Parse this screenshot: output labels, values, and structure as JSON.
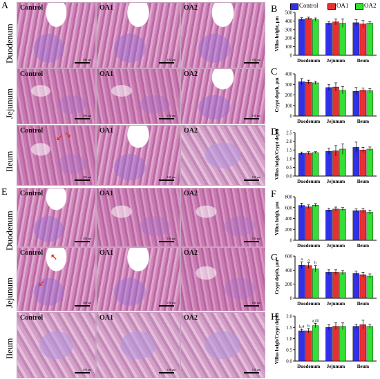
{
  "panels": {
    "A": "A",
    "B": "B",
    "C": "C",
    "D": "D",
    "E": "E",
    "F": "F",
    "G": "G",
    "H": "H"
  },
  "rows": {
    "duodenum": "Duodenum",
    "jejunum": "Jejunum",
    "ileum": "Ileum"
  },
  "tile_labels": {
    "control": "Control",
    "oa1": "OA1",
    "oa2": "OA2"
  },
  "scale_text": "100 μm",
  "colors": {
    "control": "#3030e8",
    "oa1": "#e83030",
    "oa2": "#33e033"
  },
  "legend": [
    "Control",
    "OA1",
    "OA2"
  ],
  "chart_data": [
    {
      "panel": "B",
      "type": "bar",
      "ylabel": "Villus height, μm",
      "ylim": [
        0,
        500
      ],
      "yticks": [
        0,
        100,
        200,
        300,
        400,
        500
      ],
      "categories": [
        "Duodenum",
        "Jejunum",
        "Ileum"
      ],
      "series": [
        {
          "name": "Control",
          "values": [
            420,
            375,
            380
          ],
          "err": [
            18,
            20,
            35
          ]
        },
        {
          "name": "OA1",
          "values": [
            430,
            390,
            365
          ],
          "err": [
            15,
            35,
            40
          ]
        },
        {
          "name": "OA2",
          "values": [
            415,
            375,
            375
          ],
          "err": [
            20,
            50,
            15
          ]
        }
      ],
      "annotations": []
    },
    {
      "panel": "C",
      "type": "bar",
      "ylabel": "Crypt depth, μm",
      "ylim": [
        0,
        400
      ],
      "yticks": [
        0,
        100,
        200,
        300,
        400
      ],
      "categories": [
        "Duodenum",
        "Jejunum",
        "Ileum"
      ],
      "series": [
        {
          "name": "Control",
          "values": [
            325,
            270,
            235
          ],
          "err": [
            30,
            30,
            35
          ]
        },
        {
          "name": "OA1",
          "values": [
            320,
            275,
            245
          ],
          "err": [
            20,
            40,
            20
          ]
        },
        {
          "name": "OA2",
          "values": [
            315,
            245,
            240
          ],
          "err": [
            15,
            35,
            20
          ]
        }
      ],
      "annotations": []
    },
    {
      "panel": "D",
      "type": "bar",
      "ylabel": "Villus heigh/Crypt depth",
      "ylim": [
        0,
        2.5
      ],
      "yticks": [
        "0.0",
        "0.5",
        "1.0",
        "1.5",
        "2.0",
        "2.5"
      ],
      "categories": [
        "Duodenum",
        "Jejunum",
        "Ileum"
      ],
      "series": [
        {
          "name": "Control",
          "values": [
            1.3,
            1.42,
            1.65
          ],
          "err": [
            0.08,
            0.18,
            0.3
          ]
        },
        {
          "name": "OA1",
          "values": [
            1.32,
            1.45,
            1.5
          ],
          "err": [
            0.08,
            0.3,
            0.15
          ]
        },
        {
          "name": "OA2",
          "values": [
            1.35,
            1.55,
            1.55
          ],
          "err": [
            0.05,
            0.3,
            0.12
          ]
        }
      ],
      "annotations": []
    },
    {
      "panel": "F",
      "type": "bar",
      "ylabel": "Villus heigh, μm",
      "ylim": [
        0,
        800
      ],
      "yticks": [
        0,
        200,
        400,
        600,
        800
      ],
      "categories": [
        "Duodenum",
        "Jejunum",
        "Ileum"
      ],
      "series": [
        {
          "name": "Control",
          "values": [
            640,
            555,
            545
          ],
          "err": [
            40,
            35,
            30
          ]
        },
        {
          "name": "OA1",
          "values": [
            615,
            575,
            550
          ],
          "err": [
            35,
            35,
            40
          ]
        },
        {
          "name": "OA2",
          "values": [
            645,
            570,
            515
          ],
          "err": [
            30,
            30,
            40
          ]
        }
      ],
      "annotations": []
    },
    {
      "panel": "G",
      "type": "bar",
      "ylabel": "Crypt depth, μm",
      "ylim": [
        0,
        600
      ],
      "yticks": [
        0,
        200,
        400,
        600
      ],
      "categories": [
        "Duodenum",
        "Jejunum",
        "Ileum"
      ],
      "series": [
        {
          "name": "Control",
          "values": [
            470,
            370,
            355
          ],
          "err": [
            50,
            35,
            30
          ]
        },
        {
          "name": "OA1",
          "values": [
            465,
            370,
            335
          ],
          "err": [
            40,
            35,
            35
          ]
        },
        {
          "name": "OA2",
          "values": [
            420,
            365,
            315
          ],
          "err": [
            45,
            30,
            30
          ]
        }
      ],
      "annotations": [
        {
          "text": "a",
          "cat": 0,
          "series": 0
        },
        {
          "text": "a",
          "cat": 0,
          "series": 1
        },
        {
          "text": "b",
          "cat": 0,
          "series": 2
        }
      ]
    },
    {
      "panel": "H",
      "type": "bar",
      "ylabel": "Villus heigh/Crypt depth",
      "ylim": [
        0,
        2.0
      ],
      "yticks": [
        "0.0",
        "0.5",
        "1.0",
        "1.5",
        "2.0"
      ],
      "categories": [
        "Duodenum",
        "Jejunum",
        "Ileum"
      ],
      "series": [
        {
          "name": "Control",
          "values": [
            1.35,
            1.5,
            1.55
          ],
          "err": [
            0.06,
            0.12,
            0.1
          ]
        },
        {
          "name": "OA1",
          "values": [
            1.35,
            1.55,
            1.62
          ],
          "err": [
            0.1,
            0.15,
            0.2
          ]
        },
        {
          "name": "OA2",
          "values": [
            1.58,
            1.55,
            1.55
          ],
          "err": [
            0.1,
            0.15,
            0.1
          ]
        }
      ],
      "annotations": [
        {
          "text": "b,#",
          "cat": 0,
          "series": 0
        },
        {
          "text": "b",
          "cat": 0,
          "series": 1
        },
        {
          "text": "a,##",
          "cat": 0,
          "series": 2
        }
      ]
    }
  ]
}
